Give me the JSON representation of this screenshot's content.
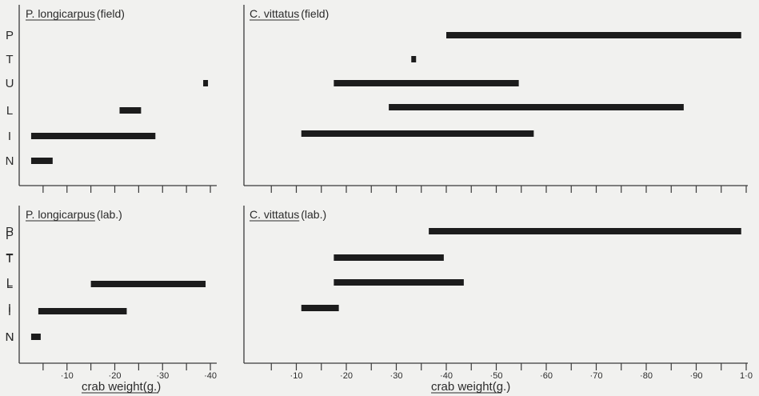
{
  "xlabel": "crab weight(g.)",
  "colors": {
    "background": "#f1f1ef",
    "ink": "#1c1c1c",
    "axis": "#3a3a3a"
  },
  "chart_data": [
    {
      "type": "bar",
      "orientation": "horizontal-range",
      "title_species": "P. longicarpus",
      "title_condition": "(field)",
      "categories": [
        "P",
        "T",
        "U",
        "L",
        "I",
        "N"
      ],
      "ranges": [
        null,
        null,
        [
          0.385,
          0.39
        ],
        [
          0.21,
          0.255
        ],
        [
          0.025,
          0.285
        ],
        [
          0.025,
          0.07
        ]
      ],
      "xlim": [
        0,
        0.41
      ],
      "xticks": [
        0.1,
        0.2,
        0.3,
        0.4
      ],
      "xticklabels": [
        "·10",
        "·20",
        "·30",
        "·40"
      ],
      "xlabel": "crab weight(g.)"
    },
    {
      "type": "bar",
      "orientation": "horizontal-range",
      "title_species": "C. vittatus",
      "title_condition": "(field)",
      "categories": [
        "P",
        "T",
        "U",
        "L",
        "I",
        "N"
      ],
      "ranges": [
        [
          0.4,
          0.99
        ],
        [
          0.33,
          0.335
        ],
        [
          0.175,
          0.545
        ],
        [
          0.285,
          0.875
        ],
        [
          0.11,
          0.575
        ],
        null
      ],
      "xlim": [
        0,
        1.0
      ],
      "xticks": [
        0.1,
        0.2,
        0.3,
        0.4,
        0.5,
        0.6,
        0.7,
        0.8,
        0.9,
        1.0
      ],
      "xticklabels": [
        "·10",
        "·20",
        "·30",
        "·40",
        "·50",
        "·60",
        "·70",
        "·80",
        "·90",
        "1·0"
      ],
      "xlabel": "crab weight(g.)"
    },
    {
      "type": "bar",
      "orientation": "horizontal-range",
      "title_species": "P. longicarpus",
      "title_condition": "(lab.)",
      "categories": [
        "P",
        "T",
        "L",
        "I",
        "N"
      ],
      "ranges": [
        null,
        null,
        [
          0.15,
          0.39
        ],
        [
          0.04,
          0.225
        ],
        [
          0.025,
          0.045
        ]
      ],
      "xlim": [
        0,
        0.41
      ],
      "xticks": [
        0.1,
        0.2,
        0.3,
        0.4
      ],
      "xticklabels": [
        "·10",
        "·20",
        "·30",
        "·40"
      ],
      "xlabel": "crab weight(g.)"
    },
    {
      "type": "bar",
      "orientation": "horizontal-range",
      "title_species": "C. vittatus",
      "title_condition": "(lab.)",
      "categories": [
        "P",
        "T",
        "L",
        "I",
        "N"
      ],
      "ranges": [
        [
          0.365,
          0.99
        ],
        [
          0.175,
          0.395
        ],
        [
          0.175,
          0.435
        ],
        [
          0.11,
          0.185
        ],
        null
      ],
      "xlim": [
        0,
        1.0
      ],
      "xticks": [
        0.1,
        0.2,
        0.3,
        0.4,
        0.5,
        0.6,
        0.7,
        0.8,
        0.9,
        1.0
      ],
      "xticklabels": [
        "·10",
        "·20",
        "·30",
        "·40",
        "·50",
        "·60",
        "·70",
        "·80",
        "·90",
        "1·0"
      ],
      "xlabel": "crab weight(g.)"
    }
  ]
}
